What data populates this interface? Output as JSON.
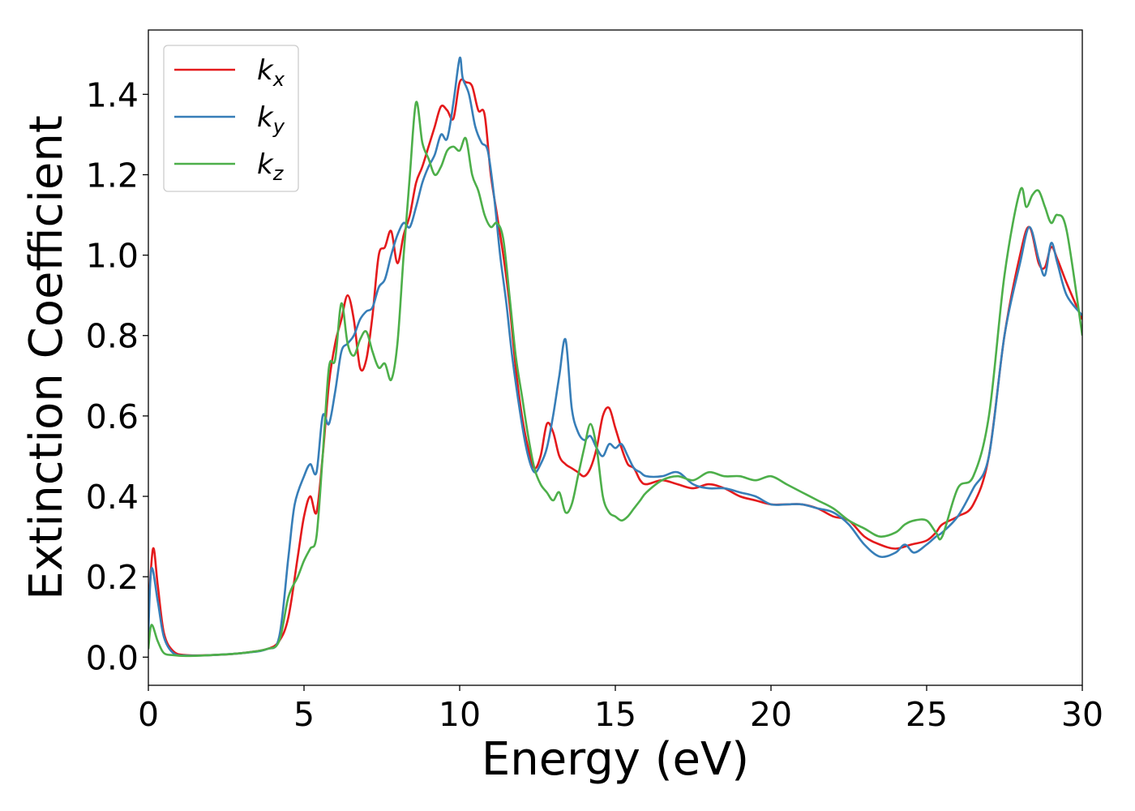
{
  "chart_data": {
    "type": "line",
    "xlabel": "Energy (eV)",
    "ylabel": "Extinction Coefficient",
    "xlim": [
      0,
      30
    ],
    "ylim": [
      -0.07,
      1.56
    ],
    "x_ticks": [
      0,
      5,
      10,
      15,
      20,
      25,
      30
    ],
    "y_ticks": [
      0.0,
      0.2,
      0.4,
      0.6,
      0.8,
      1.0,
      1.2,
      1.4
    ],
    "x_tick_labels": [
      "0",
      "5",
      "10",
      "15",
      "20",
      "25",
      "30"
    ],
    "y_tick_labels": [
      "0.0",
      "0.2",
      "0.4",
      "0.6",
      "0.8",
      "1.0",
      "1.2",
      "1.4"
    ],
    "grid": false,
    "legend_position": "top-left",
    "series": [
      {
        "name": "k_x",
        "label_base": "k",
        "label_sub": "x",
        "color": "#e41a1c",
        "x": [
          0,
          0.15,
          0.3,
          0.5,
          0.8,
          1.2,
          2.0,
          3.0,
          3.8,
          4.2,
          4.5,
          4.8,
          5.0,
          5.2,
          5.4,
          5.6,
          5.8,
          6.0,
          6.2,
          6.4,
          6.6,
          6.8,
          7.0,
          7.2,
          7.4,
          7.6,
          7.8,
          8.0,
          8.2,
          8.4,
          8.6,
          8.8,
          9.0,
          9.2,
          9.4,
          9.6,
          9.8,
          10.0,
          10.2,
          10.4,
          10.6,
          10.8,
          11.0,
          11.2,
          11.4,
          11.6,
          11.8,
          12.0,
          12.2,
          12.4,
          12.6,
          12.8,
          13.0,
          13.2,
          13.4,
          13.6,
          13.8,
          14.0,
          14.2,
          14.4,
          14.6,
          14.8,
          15.0,
          15.2,
          15.4,
          15.6,
          15.8,
          16.0,
          16.5,
          17.0,
          17.5,
          18.0,
          18.5,
          19.0,
          19.5,
          20.0,
          20.5,
          21.0,
          21.5,
          22.0,
          22.5,
          23.0,
          23.5,
          24.0,
          24.5,
          25.0,
          25.3,
          25.5,
          26.0,
          26.5,
          27.0,
          27.5,
          28.0,
          28.3,
          28.6,
          28.8,
          29.0,
          29.2,
          29.5,
          30.0
        ],
        "y": [
          0.12,
          0.27,
          0.18,
          0.06,
          0.015,
          0.005,
          0.005,
          0.01,
          0.02,
          0.04,
          0.1,
          0.25,
          0.35,
          0.4,
          0.36,
          0.5,
          0.68,
          0.78,
          0.84,
          0.9,
          0.84,
          0.72,
          0.74,
          0.85,
          1.0,
          1.02,
          1.06,
          0.98,
          1.05,
          1.1,
          1.18,
          1.22,
          1.27,
          1.32,
          1.37,
          1.36,
          1.34,
          1.43,
          1.43,
          1.42,
          1.36,
          1.35,
          1.2,
          1.1,
          1.0,
          0.88,
          0.72,
          0.6,
          0.52,
          0.47,
          0.5,
          0.58,
          0.56,
          0.5,
          0.48,
          0.47,
          0.46,
          0.45,
          0.47,
          0.52,
          0.6,
          0.62,
          0.57,
          0.52,
          0.48,
          0.47,
          0.44,
          0.43,
          0.44,
          0.43,
          0.42,
          0.43,
          0.42,
          0.4,
          0.39,
          0.38,
          0.38,
          0.38,
          0.37,
          0.35,
          0.34,
          0.3,
          0.28,
          0.27,
          0.28,
          0.29,
          0.31,
          0.33,
          0.35,
          0.38,
          0.5,
          0.8,
          1.0,
          1.07,
          0.98,
          0.97,
          1.02,
          0.99,
          0.93,
          0.84
        ]
      },
      {
        "name": "k_y",
        "label_base": "k",
        "label_sub": "y",
        "color": "#377eb8",
        "x": [
          0,
          0.1,
          0.3,
          0.5,
          0.8,
          1.2,
          2.0,
          3.0,
          3.8,
          4.2,
          4.5,
          4.7,
          5.0,
          5.2,
          5.4,
          5.6,
          5.8,
          6.0,
          6.2,
          6.4,
          6.6,
          6.8,
          7.0,
          7.2,
          7.4,
          7.6,
          7.8,
          8.0,
          8.2,
          8.4,
          8.6,
          8.8,
          9.0,
          9.2,
          9.4,
          9.6,
          9.8,
          10.0,
          10.1,
          10.3,
          10.5,
          10.7,
          10.9,
          11.1,
          11.3,
          11.5,
          11.7,
          12.0,
          12.2,
          12.4,
          12.6,
          12.8,
          13.0,
          13.2,
          13.4,
          13.6,
          13.8,
          14.0,
          14.2,
          14.4,
          14.6,
          14.8,
          15.0,
          15.2,
          15.4,
          15.6,
          15.8,
          16.0,
          16.5,
          17.0,
          17.5,
          18.0,
          18.5,
          19.0,
          19.5,
          20.0,
          20.5,
          21.0,
          21.5,
          22.0,
          22.5,
          23.0,
          23.5,
          24.0,
          24.3,
          24.6,
          25.0,
          25.3,
          25.5,
          26.0,
          26.5,
          27.0,
          27.5,
          28.0,
          28.3,
          28.6,
          28.8,
          29.0,
          29.2,
          29.5,
          30.0
        ],
        "y": [
          0.06,
          0.22,
          0.14,
          0.05,
          0.01,
          0.004,
          0.005,
          0.01,
          0.02,
          0.05,
          0.25,
          0.38,
          0.45,
          0.48,
          0.46,
          0.6,
          0.58,
          0.66,
          0.76,
          0.78,
          0.8,
          0.84,
          0.86,
          0.87,
          0.92,
          0.94,
          1.0,
          1.05,
          1.08,
          1.07,
          1.12,
          1.18,
          1.22,
          1.25,
          1.3,
          1.29,
          1.38,
          1.49,
          1.44,
          1.4,
          1.32,
          1.28,
          1.26,
          1.15,
          1.0,
          0.88,
          0.74,
          0.58,
          0.5,
          0.46,
          0.48,
          0.52,
          0.6,
          0.7,
          0.79,
          0.62,
          0.56,
          0.54,
          0.55,
          0.52,
          0.5,
          0.53,
          0.52,
          0.53,
          0.5,
          0.47,
          0.46,
          0.45,
          0.45,
          0.46,
          0.43,
          0.42,
          0.42,
          0.41,
          0.4,
          0.38,
          0.38,
          0.38,
          0.37,
          0.36,
          0.33,
          0.28,
          0.25,
          0.26,
          0.28,
          0.26,
          0.28,
          0.3,
          0.31,
          0.35,
          0.42,
          0.5,
          0.8,
          0.98,
          1.07,
          0.99,
          0.95,
          1.03,
          0.98,
          0.9,
          0.85
        ]
      },
      {
        "name": "k_z",
        "label_base": "k",
        "label_sub": "z",
        "color": "#4daf4a",
        "x": [
          0,
          0.1,
          0.3,
          0.5,
          0.8,
          1.2,
          2.0,
          3.0,
          3.8,
          4.2,
          4.5,
          4.8,
          5.0,
          5.2,
          5.4,
          5.6,
          5.8,
          6.0,
          6.2,
          6.4,
          6.6,
          6.8,
          7.0,
          7.2,
          7.4,
          7.6,
          7.8,
          8.0,
          8.2,
          8.4,
          8.6,
          8.8,
          9.0,
          9.2,
          9.4,
          9.6,
          9.8,
          10.0,
          10.2,
          10.4,
          10.6,
          10.8,
          11.0,
          11.2,
          11.4,
          11.6,
          11.8,
          12.0,
          12.2,
          12.4,
          12.6,
          12.8,
          13.0,
          13.2,
          13.4,
          13.6,
          13.8,
          14.0,
          14.2,
          14.4,
          14.6,
          14.8,
          15.0,
          15.2,
          15.4,
          15.6,
          15.8,
          16.0,
          16.5,
          17.0,
          17.5,
          18.0,
          18.5,
          19.0,
          19.5,
          20.0,
          20.5,
          21.0,
          21.5,
          22.0,
          22.5,
          23.0,
          23.5,
          24.0,
          24.3,
          24.6,
          25.0,
          25.3,
          25.5,
          26.0,
          26.5,
          27.0,
          27.5,
          28.0,
          28.2,
          28.4,
          28.6,
          28.8,
          29.0,
          29.2,
          29.5,
          30.0
        ],
        "y": [
          0.02,
          0.08,
          0.04,
          0.01,
          0.005,
          0.003,
          0.005,
          0.01,
          0.02,
          0.04,
          0.15,
          0.2,
          0.24,
          0.27,
          0.3,
          0.5,
          0.72,
          0.74,
          0.88,
          0.78,
          0.75,
          0.79,
          0.81,
          0.76,
          0.72,
          0.73,
          0.69,
          0.78,
          1.0,
          1.2,
          1.38,
          1.28,
          1.24,
          1.2,
          1.22,
          1.26,
          1.27,
          1.26,
          1.29,
          1.2,
          1.16,
          1.1,
          1.07,
          1.08,
          1.04,
          0.9,
          0.75,
          0.65,
          0.55,
          0.47,
          0.43,
          0.41,
          0.39,
          0.41,
          0.36,
          0.38,
          0.45,
          0.52,
          0.58,
          0.52,
          0.4,
          0.36,
          0.35,
          0.34,
          0.35,
          0.37,
          0.39,
          0.41,
          0.44,
          0.45,
          0.44,
          0.46,
          0.45,
          0.45,
          0.44,
          0.45,
          0.43,
          0.41,
          0.39,
          0.37,
          0.34,
          0.32,
          0.3,
          0.31,
          0.33,
          0.34,
          0.34,
          0.31,
          0.3,
          0.42,
          0.45,
          0.6,
          0.95,
          1.16,
          1.12,
          1.15,
          1.16,
          1.12,
          1.08,
          1.1,
          1.06,
          0.8
        ]
      }
    ]
  }
}
